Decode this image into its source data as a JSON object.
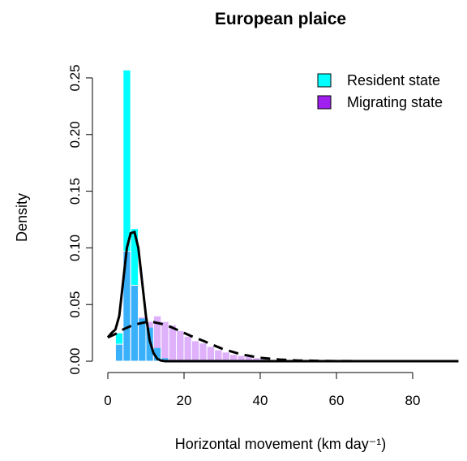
{
  "chart_data": {
    "type": "histogram",
    "title": "European plaice",
    "x_label": "Horizontal movement (km day⁻¹)",
    "y_label": "Density",
    "xlim": [
      -3.68,
      92
    ],
    "ylim": [
      -0.01,
      0.26
    ],
    "xticks": [
      0,
      20,
      40,
      60,
      80
    ],
    "yticks": [
      {
        "value": 0,
        "label": "0.00"
      },
      {
        "value": 0.05,
        "label": "0.05"
      },
      {
        "value": 0.1,
        "label": "0.10"
      },
      {
        "value": 0.15,
        "label": "0.15"
      },
      {
        "value": 0.2,
        "label": "0.20"
      },
      {
        "value": 0.25,
        "label": "0.25"
      }
    ],
    "bar_opacity": 0.35,
    "legend": "topright",
    "series": [
      {
        "name": "Resident state",
        "color": "#00ffff",
        "bins": [
          2,
          4,
          6,
          8,
          10,
          12,
          14,
          16,
          18
        ],
        "values": [
          0.025,
          0.257,
          0.117,
          0.038,
          0.03,
          0.012,
          0.003,
          0.001
        ]
      },
      {
        "name": "Migrating state",
        "color": "#a020f0",
        "bins": [
          2,
          4,
          6,
          8,
          10,
          12,
          14,
          16,
          18,
          20,
          22,
          24,
          26,
          28,
          30,
          32,
          34,
          36,
          38,
          40,
          42,
          44,
          46,
          48,
          50
        ],
        "values": [
          0.015,
          0.097,
          0.067,
          0.039,
          0.035,
          0.04,
          0.035,
          0.032,
          0.027,
          0.022,
          0.018,
          0.016,
          0.013,
          0.01,
          0.008,
          0.006,
          0.005,
          0.004,
          0.003,
          0.002,
          0.0015,
          0.001,
          0.0006,
          0.0004
        ]
      }
    ],
    "curves": [
      {
        "color": "#000000",
        "dash": false,
        "x": [
          0,
          1,
          2,
          3,
          4,
          5,
          6,
          7,
          8,
          9,
          10,
          11,
          12,
          13,
          14,
          15,
          16,
          20,
          30,
          40,
          60,
          80,
          92
        ],
        "y": [
          0.021,
          0.025,
          0.028,
          0.04,
          0.07,
          0.1,
          0.113,
          0.114,
          0.1,
          0.07,
          0.04,
          0.018,
          0.007,
          0.002,
          0.0005,
          0,
          0,
          0,
          0,
          0,
          0,
          0,
          0
        ]
      },
      {
        "color": "#000000",
        "dash": true,
        "x": [
          0,
          2,
          4,
          6,
          8,
          10,
          12,
          14,
          16,
          18,
          20,
          22,
          25,
          30,
          35,
          40,
          45,
          50,
          60,
          80,
          92
        ],
        "y": [
          0.021,
          0.024,
          0.028,
          0.031,
          0.033,
          0.0345,
          0.0345,
          0.033,
          0.031,
          0.028,
          0.025,
          0.022,
          0.018,
          0.011,
          0.006,
          0.003,
          0.0015,
          0.0006,
          0.0001,
          0,
          0
        ]
      }
    ]
  }
}
